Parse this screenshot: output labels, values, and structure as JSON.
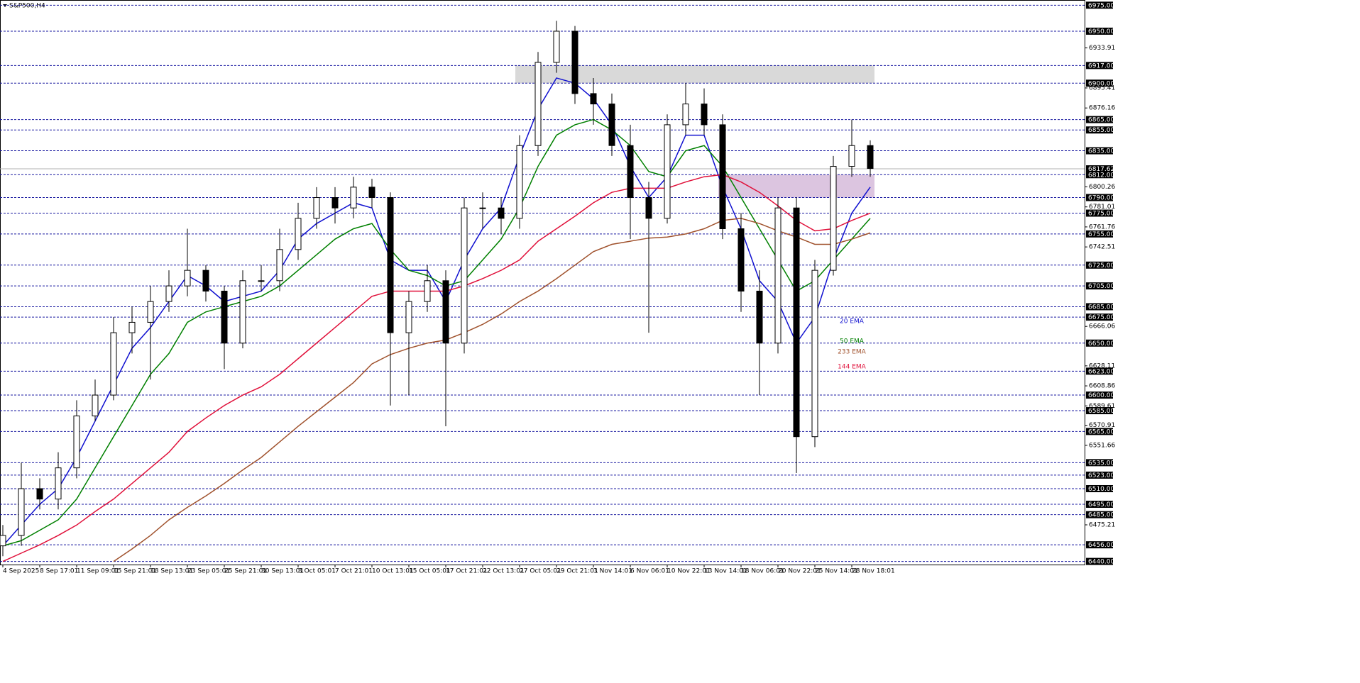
{
  "chart_data": {
    "type": "candlestick",
    "title": "S&P500,H4",
    "categories": [
      "4 Sep 2025",
      null,
      "8 Sep 17:01",
      null,
      "11 Sep 09:01",
      null,
      "15 Sep 21:01",
      null,
      "18 Sep 13:01",
      null,
      "23 Sep 05:01",
      null,
      "25 Sep 21:01",
      null,
      "30 Sep 13:01",
      null,
      "3 Oct 05:01",
      null,
      "7 Oct 21:01",
      null,
      "10 Oct 13:01",
      null,
      "15 Oct 05:01",
      null,
      "17 Oct 21:01",
      null,
      "22 Oct 13:01",
      null,
      "27 Oct 05:01",
      null,
      "29 Oct 21:01",
      null,
      "3 Nov 14:01",
      null,
      "6 Nov 06:01",
      null,
      "10 Nov 22:01",
      null,
      "13 Nov 14:01",
      null,
      "18 Nov 06:01",
      null,
      "20 Nov 22:01",
      null,
      "25 Nov 14:01",
      null,
      "28 Nov 18:01",
      null
    ],
    "open": [
      6455,
      6465,
      6510,
      6500,
      6530,
      6580,
      6600,
      6660,
      6670,
      6690,
      6705,
      6720,
      6700,
      6650,
      6710,
      6710,
      6740,
      6770,
      6790,
      6780,
      6800,
      6790,
      6660,
      6690,
      6710,
      6650,
      6780,
      6780,
      6770,
      6840,
      6920,
      6950,
      6890,
      6880,
      6840,
      6790,
      6770,
      6860,
      6880,
      6860,
      6760,
      6700,
      6650,
      6780,
      6560,
      6720,
      6820,
      6840
    ],
    "high": [
      6475,
      6535,
      6520,
      6545,
      6595,
      6615,
      6675,
      6685,
      6705,
      6720,
      6760,
      6725,
      6705,
      6720,
      6725,
      6760,
      6785,
      6800,
      6800,
      6810,
      6808,
      6795,
      6700,
      6725,
      6720,
      6790,
      6795,
      6790,
      6850,
      6930,
      6960,
      6955,
      6905,
      6890,
      6860,
      6805,
      6870,
      6900,
      6895,
      6870,
      6775,
      6720,
      6790,
      6790,
      6730,
      6830,
      6865,
      6845
    ],
    "low": [
      6445,
      6455,
      6490,
      6490,
      6520,
      6575,
      6595,
      6640,
      6615,
      6680,
      6695,
      6690,
      6625,
      6645,
      6700,
      6700,
      6730,
      6760,
      6765,
      6770,
      6780,
      6590,
      6600,
      6680,
      6570,
      6640,
      6760,
      6755,
      6760,
      6830,
      6910,
      6880,
      6860,
      6830,
      6750,
      6660,
      6765,
      6850,
      6850,
      6750,
      6680,
      6600,
      6640,
      6525,
      6550,
      6715,
      6810,
      6810
    ],
    "close": [
      6465,
      6510,
      6500,
      6530,
      6580,
      6600,
      6660,
      6670,
      6690,
      6705,
      6720,
      6700,
      6650,
      6710,
      6710,
      6740,
      6770,
      6790,
      6780,
      6800,
      6790,
      6660,
      6690,
      6710,
      6650,
      6780,
      6780,
      6770,
      6840,
      6920,
      6950,
      6890,
      6880,
      6840,
      6790,
      6770,
      6860,
      6880,
      6860,
      6760,
      6700,
      6650,
      6780,
      6560,
      6720,
      6820,
      6840,
      6818
    ],
    "series": [
      {
        "name": "20 EMA",
        "color": "#1010d0",
        "values": [
          6455,
          6475,
          6495,
          6510,
          6540,
          6575,
          6610,
          6645,
          6665,
          6690,
          6715,
          6705,
          6690,
          6695,
          6700,
          6720,
          6750,
          6765,
          6775,
          6785,
          6780,
          6730,
          6720,
          6720,
          6690,
          6730,
          6760,
          6780,
          6830,
          6875,
          6905,
          6900,
          6885,
          6860,
          6820,
          6790,
          6810,
          6850,
          6850,
          6800,
          6760,
          6710,
          6690,
          6650,
          6675,
          6730,
          6775,
          6800
        ]
      },
      {
        "name": "50 EMA",
        "color": "#008000",
        "values": [
          6455,
          6460,
          6470,
          6480,
          6500,
          6530,
          6560,
          6590,
          6620,
          6640,
          6670,
          6680,
          6685,
          6690,
          6695,
          6705,
          6720,
          6735,
          6750,
          6760,
          6765,
          6740,
          6720,
          6715,
          6705,
          6710,
          6730,
          6750,
          6780,
          6820,
          6850,
          6860,
          6865,
          6855,
          6840,
          6815,
          6810,
          6835,
          6840,
          6820,
          6790,
          6760,
          6730,
          6700,
          6710,
          6730,
          6750,
          6770
        ]
      },
      {
        "name": "233 EMA",
        "color": "#a0522d",
        "values": [
          null,
          null,
          null,
          null,
          null,
          null,
          6440,
          6452,
          6465,
          6480,
          6492,
          6503,
          6515,
          6528,
          6540,
          6555,
          6570,
          6584,
          6598,
          6612,
          6630,
          6639,
          6645,
          6650,
          6653,
          6660,
          6668,
          6678,
          6690,
          6700,
          6712,
          6725,
          6738,
          6745,
          6748,
          6751,
          6752,
          6755,
          6760,
          6768,
          6770,
          6765,
          6758,
          6752,
          6745,
          6745,
          6750,
          6756
        ]
      },
      {
        "name": "144 EMA",
        "color": "#e0103a",
        "values": [
          6440,
          6448,
          6456,
          6465,
          6475,
          6488,
          6500,
          6515,
          6530,
          6545,
          6565,
          6578,
          6590,
          6600,
          6608,
          6620,
          6635,
          6650,
          6665,
          6680,
          6695,
          6700,
          6700,
          6700,
          6700,
          6705,
          6712,
          6720,
          6730,
          6748,
          6760,
          6772,
          6785,
          6795,
          6799,
          6799,
          6799,
          6805,
          6810,
          6812,
          6805,
          6795,
          6782,
          6768,
          6758,
          6760,
          6768,
          6775
        ]
      }
    ],
    "zones": [
      {
        "range": [
          6900,
          6917
        ],
        "start": 28,
        "color": "#d9d9d9"
      },
      {
        "range": [
          6790,
          6812
        ],
        "start": 39,
        "color": "#dcc5e0"
      }
    ],
    "ylim": [
      6437,
      6980
    ],
    "yticks": [
      6933.91,
      6895.41,
      6876.16,
      6800.26,
      6781.01,
      6761.76,
      6742.51,
      6666.06,
      6628.11,
      6608.86,
      6589.61,
      6570.91,
      6551.66,
      6475.21
    ],
    "levels": [
      {
        "value": 6975,
        "label": "6975.00"
      },
      {
        "value": 6950,
        "label": "6950.00"
      },
      {
        "value": 6917,
        "label": "6917.00"
      },
      {
        "value": 6900,
        "label": "6900.00"
      },
      {
        "value": 6865,
        "label": "6865.00"
      },
      {
        "value": 6855,
        "label": "6855.00"
      },
      {
        "value": 6835,
        "label": "6835.00"
      },
      {
        "value": 6812,
        "label": "6812.00"
      },
      {
        "value": 6790,
        "label": "6790.00"
      },
      {
        "value": 6775,
        "label": "6775.00"
      },
      {
        "value": 6755,
        "label": "6755.00"
      },
      {
        "value": 6725,
        "label": "6725.00"
      },
      {
        "value": 6705,
        "label": "6705.00"
      },
      {
        "value": 6685,
        "label": "6685.00"
      },
      {
        "value": 6675,
        "label": "6675.00"
      },
      {
        "value": 6650,
        "label": "6650.00"
      },
      {
        "value": 6623,
        "label": "6623.00"
      },
      {
        "value": 6600,
        "label": "6600.00"
      },
      {
        "value": 6585,
        "label": "6585.00"
      },
      {
        "value": 6565,
        "label": "6565.00"
      },
      {
        "value": 6535,
        "label": "6535.00"
      },
      {
        "value": 6523,
        "label": "6523.00"
      },
      {
        "value": 6510,
        "label": "6510.00"
      },
      {
        "value": 6495,
        "label": "6495.00"
      },
      {
        "value": 6485,
        "label": "6485.00"
      },
      {
        "value": 6456,
        "label": "6456.00"
      },
      {
        "value": 6440,
        "label": "6440.00"
      }
    ],
    "last_price": 6817.62,
    "level_color": "#1a1aa0"
  }
}
